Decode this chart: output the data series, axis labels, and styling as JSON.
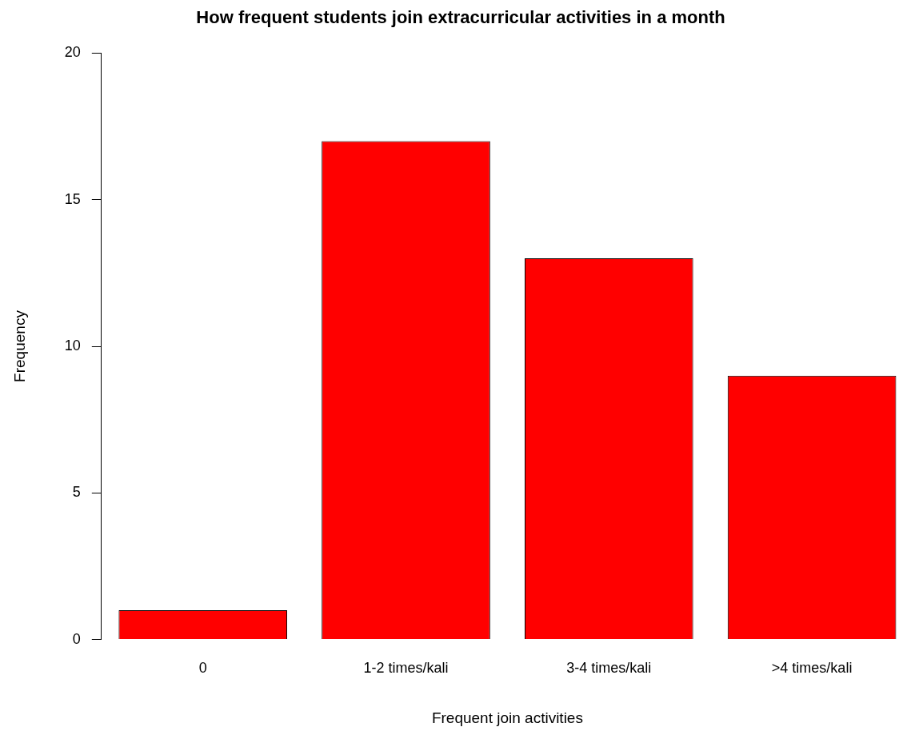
{
  "chart_data": {
    "type": "bar",
    "title": "How frequent students join extracurricular activities in a month",
    "xlabel": "Frequent join activities",
    "ylabel": "Frequency",
    "categories": [
      "0",
      "1-2 times/kali",
      "3-4 times/kali",
      ">4 times/kali"
    ],
    "values": [
      1,
      17,
      13,
      9
    ],
    "color": "#ff0000",
    "ylim": [
      0,
      20
    ],
    "yticks": [
      0,
      5,
      10,
      15,
      20
    ],
    "grid": false,
    "legend": false
  }
}
